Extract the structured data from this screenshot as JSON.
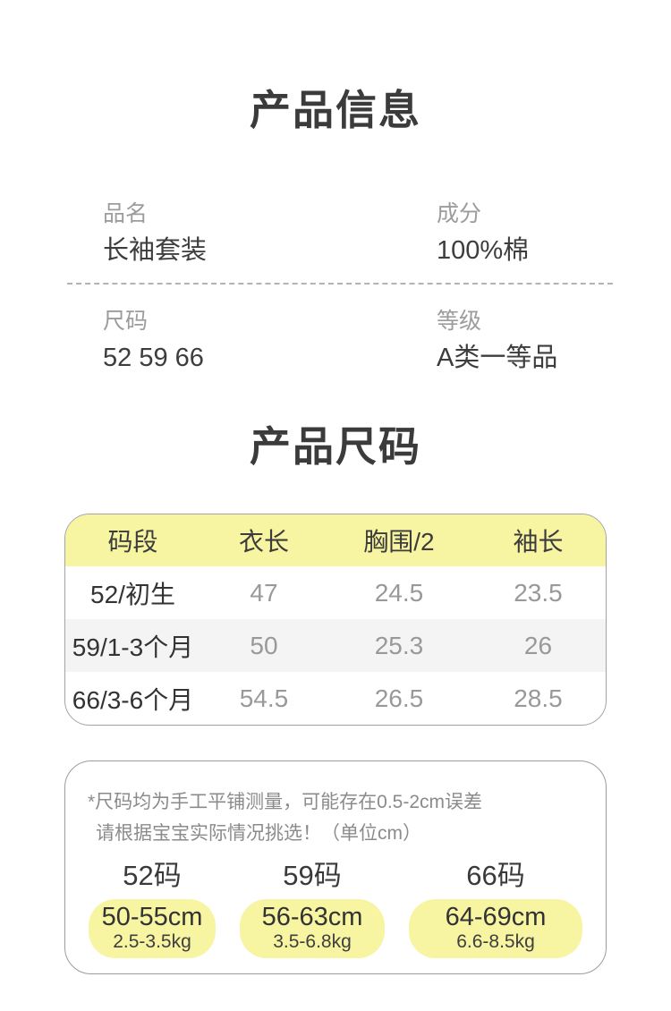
{
  "colors": {
    "accent_yellow": "#f7f4a2",
    "table_alt_row": "#f4f4f4",
    "title_text": "#3b3b3b",
    "label_text": "#9c9c9c",
    "value_text": "#3d3d3d",
    "number_text": "#999999",
    "note_text": "#8b8b8b",
    "border_gray": "#9c9c9c"
  },
  "product_info": {
    "title": "产品信息",
    "fields": [
      {
        "label": "品名",
        "value": "长袖套装"
      },
      {
        "label": "成分",
        "value": "100%棉"
      },
      {
        "label": "尺码",
        "value": "52 59 66"
      },
      {
        "label": "等级",
        "value": "A类一等品"
      }
    ]
  },
  "product_size": {
    "title": "产品尺码",
    "table": {
      "headers": [
        "码段",
        "衣长",
        "胸围/2",
        "袖长"
      ],
      "rows": [
        {
          "label": "52/初生",
          "values": [
            "47",
            "24.5",
            "23.5"
          ]
        },
        {
          "label": "59/1-3个月",
          "values": [
            "50",
            "25.3",
            "26"
          ]
        },
        {
          "label": "66/3-6个月",
          "values": [
            "54.5",
            "26.5",
            "28.5"
          ]
        }
      ]
    }
  },
  "size_guide": {
    "note_line1": "*尺码均为手工平铺测量，可能存在0.5-2cm误差",
    "note_line2": "请根据宝宝实际情况挑选！（单位cm）",
    "options": [
      {
        "size": "52码",
        "height_range": "50-55cm",
        "weight_range": "2.5-3.5kg"
      },
      {
        "size": "59码",
        "height_range": "56-63cm",
        "weight_range": "3.5-6.8kg"
      },
      {
        "size": "66码",
        "height_range": "64-69cm",
        "weight_range": "6.6-8.5kg"
      }
    ]
  }
}
